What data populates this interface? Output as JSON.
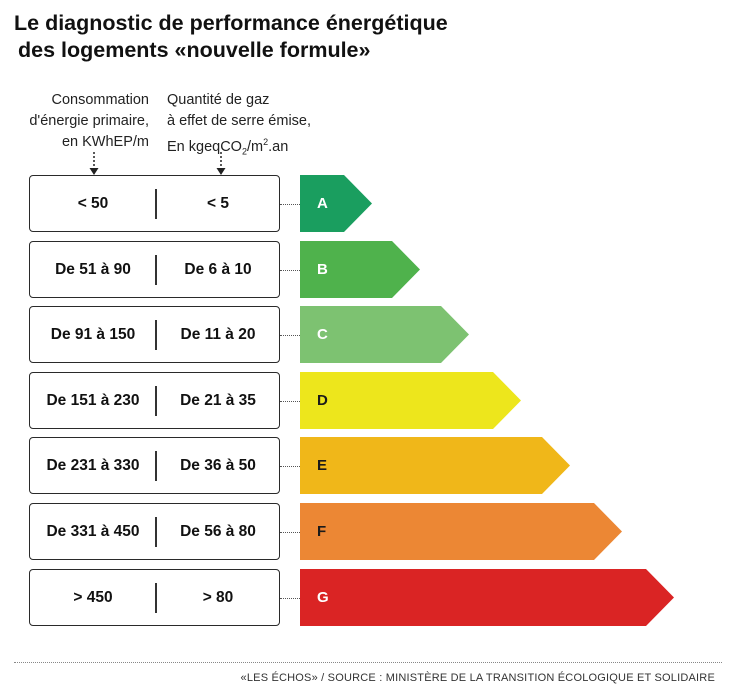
{
  "title": {
    "line1": "Le diagnostic de performance énergétique",
    "line2": "des logements «nouvelle formule»"
  },
  "columns": {
    "energy": {
      "line1": "Consommation",
      "line2": "d'énergie primaire,",
      "line3": "en KWhEP/m"
    },
    "ghg": {
      "line1": "Quantité de gaz",
      "line2": "à effet de serre émise,",
      "line3_prefix": "En kgeqCO",
      "line3_sub": "2",
      "line3_mid": "/m",
      "line3_sup": "2",
      "line3_suffix": ".an"
    }
  },
  "rows": [
    {
      "energy": "< 50",
      "ghg": "< 5",
      "label": "A",
      "color": "#1a9e5f",
      "text_color": "#ffffff",
      "rel_length": 0.19
    },
    {
      "energy": "De 51 à 90",
      "ghg": "De 6 à 10",
      "label": "B",
      "color": "#4fb24c",
      "text_color": "#ffffff",
      "rel_length": 0.32
    },
    {
      "energy": "De 91 à 150",
      "ghg": "De 11 à 20",
      "label": "C",
      "color": "#7dc271",
      "text_color": "#ffffff",
      "rel_length": 0.45
    },
    {
      "energy": "De 151 à 230",
      "ghg": "De 21 à 35",
      "label": "D",
      "color": "#ede61c",
      "text_color": "#1a1a1a",
      "rel_length": 0.59
    },
    {
      "energy": "De 231 à 330",
      "ghg": "De 36 à 50",
      "label": "E",
      "color": "#f0b719",
      "text_color": "#1a1a1a",
      "rel_length": 0.72
    },
    {
      "energy": "De 331 à 450",
      "ghg": "De 56 à 80",
      "label": "F",
      "color": "#ec8734",
      "text_color": "#1a1a1a",
      "rel_length": 0.86
    },
    {
      "energy": "> 450",
      "ghg": "> 80",
      "label": "G",
      "color": "#da2424",
      "text_color": "#ffffff",
      "rel_length": 1.0
    }
  ],
  "footer": "«LES ÉCHOS» / SOURCE : MINISTÈRE DE LA TRANSITION ÉCOLOGIQUE ET SOLIDAIRE"
}
